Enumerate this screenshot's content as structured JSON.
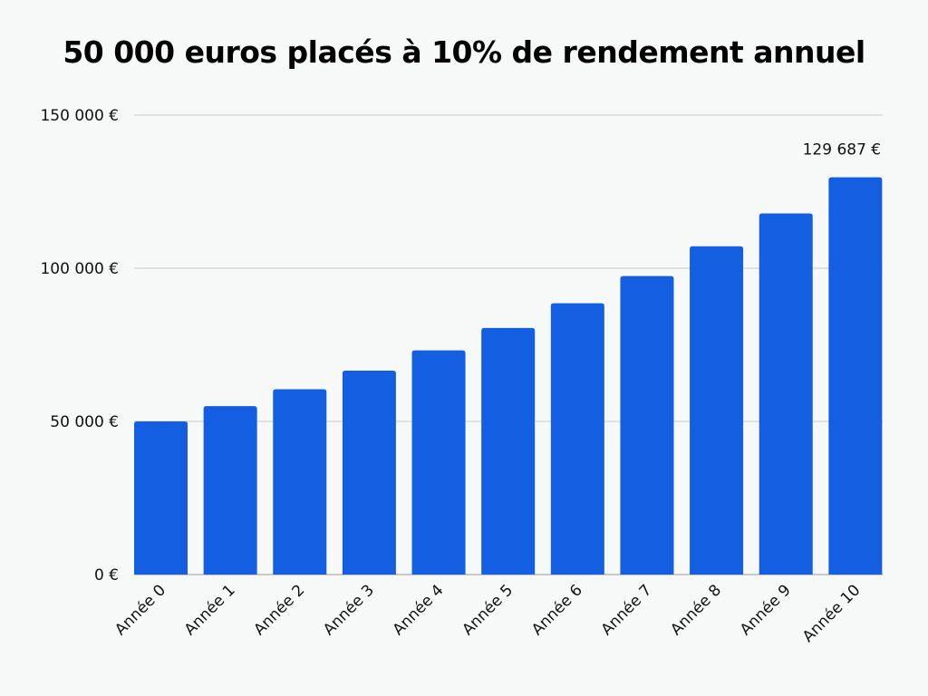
{
  "chart_data": {
    "type": "bar",
    "title": "50 000 euros placés à 10% de rendement annuel",
    "xlabel": "",
    "ylabel": "",
    "categories": [
      "Année 0",
      "Année 1",
      "Année 2",
      "Année 3",
      "Année 4",
      "Année 5",
      "Année 6",
      "Année 7",
      "Année 8",
      "Année 9",
      "Année 10"
    ],
    "values": [
      50000,
      55000,
      60500,
      66550,
      73205,
      80526,
      88578,
      97436,
      107179,
      117897,
      129687
    ],
    "ylim": [
      0,
      150000
    ],
    "yticks": [
      0,
      50000,
      100000,
      150000
    ],
    "ytick_labels": [
      "0 €",
      "50 000 €",
      "100 000 €",
      "150 000 €"
    ],
    "data_labels": [
      {
        "index": 10,
        "text": "129 687 €"
      }
    ],
    "grid": true,
    "bar_color": "#135ee1",
    "grid_color": "#c8cbcc"
  }
}
